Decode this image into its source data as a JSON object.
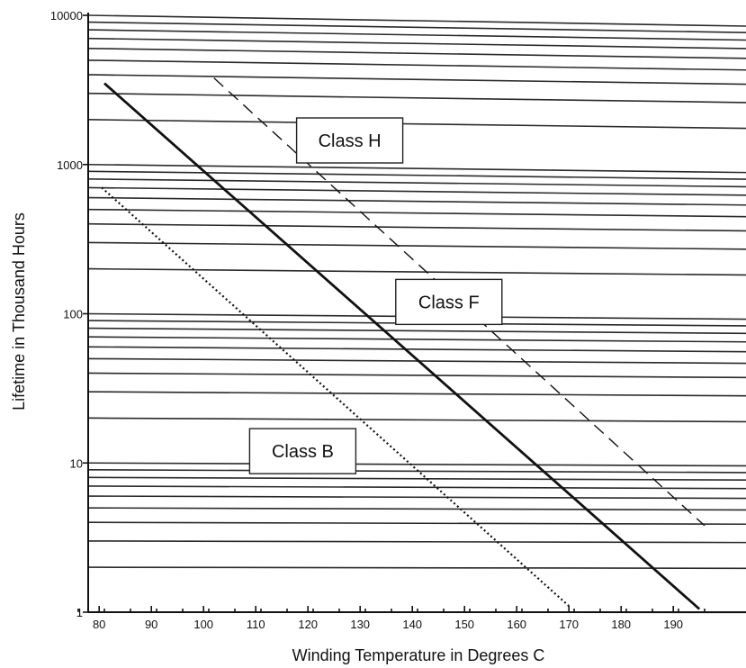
{
  "chart_data": {
    "type": "line",
    "title": "",
    "xlabel": "Winding Temperature in Degrees C",
    "ylabel": "Lifetime in Thousand Hours",
    "xlim": [
      76,
      196
    ],
    "ylim": [
      1,
      10000
    ],
    "yscale": "log",
    "grid": true,
    "x_ticks": [
      80,
      90,
      100,
      110,
      120,
      130,
      140,
      150,
      160,
      170,
      180,
      190
    ],
    "y_ticks": [
      1,
      10,
      100,
      1000,
      10000
    ],
    "y_tick_labels": [
      "1",
      "10",
      "100",
      "1000",
      "10000"
    ],
    "series": [
      {
        "name": "Class B",
        "style": "dotted",
        "x": [
          80.5,
          170
        ],
        "y": [
          700,
          1.1
        ]
      },
      {
        "name": "Class F",
        "style": "solid",
        "x": [
          81,
          195
        ],
        "y": [
          3500,
          1.05
        ]
      },
      {
        "name": "Class H",
        "style": "dashed",
        "x": [
          102,
          196
        ],
        "y": [
          3800,
          3.8
        ]
      }
    ],
    "annotations": [
      {
        "text": "Class H",
        "x": 128,
        "y": 1450
      },
      {
        "text": "Class F",
        "x": 147,
        "y": 120
      },
      {
        "text": "Class B",
        "x": 119,
        "y": 12
      }
    ]
  }
}
